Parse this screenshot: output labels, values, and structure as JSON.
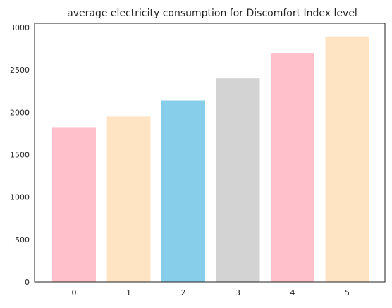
{
  "chart_data": {
    "type": "bar",
    "title": "average electricity consumption for Discomfort Index level",
    "xlabel": "",
    "ylabel": "",
    "categories": [
      "0",
      "1",
      "2",
      "3",
      "4",
      "5"
    ],
    "values": [
      1825,
      1950,
      2140,
      2400,
      2700,
      2895
    ],
    "colors": [
      "#ffc0cb",
      "#ffe4c4",
      "#87ceeb",
      "#d3d3d3",
      "#ffc0cb",
      "#ffe4c4"
    ],
    "ylim": [
      0,
      3050
    ],
    "yticks": [
      0,
      500,
      1000,
      1500,
      2000,
      2500,
      3000
    ],
    "grid": false,
    "legend": "none"
  }
}
